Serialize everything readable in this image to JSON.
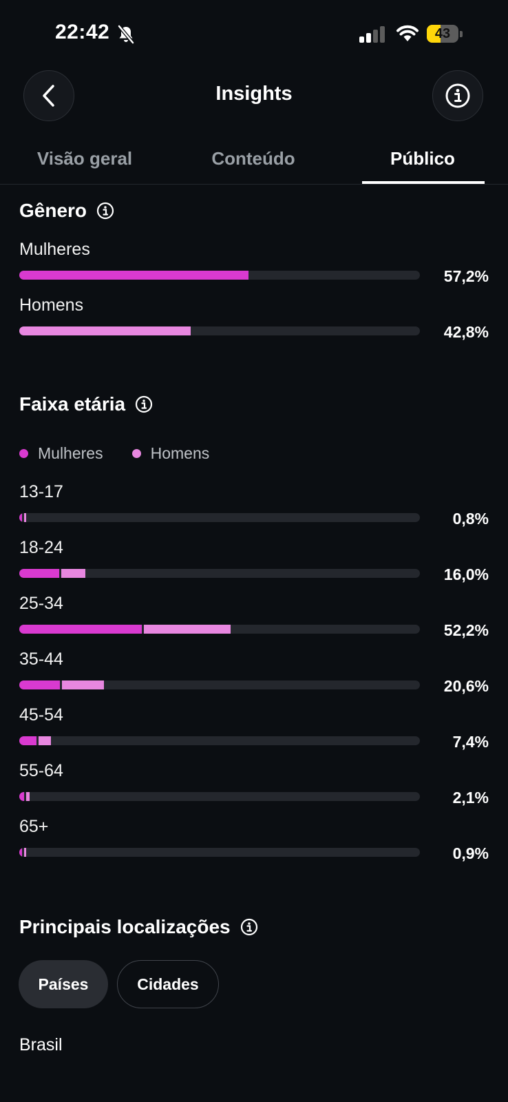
{
  "status_bar": {
    "time": "22:42",
    "battery": "43",
    "battery_level": 0.43
  },
  "header": {
    "title": "Insights"
  },
  "tabs": [
    {
      "label": "Visão geral",
      "active": false
    },
    {
      "label": "Conteúdo",
      "active": false
    },
    {
      "label": "Público",
      "active": true
    }
  ],
  "gender": {
    "title": "Gênero",
    "rows": [
      {
        "label": "Mulheres",
        "pct": "57,2%",
        "value": 57.2
      },
      {
        "label": "Homens",
        "pct": "42,8%",
        "value": 42.8
      }
    ]
  },
  "age": {
    "title": "Faixa etária",
    "legend": [
      "Mulheres",
      "Homens"
    ],
    "rows": [
      {
        "label": "13-17",
        "pct": "0,8%",
        "women": 0.5,
        "men": 0.3
      },
      {
        "label": "18-24",
        "pct": "16,0%",
        "women": 10,
        "men": 6
      },
      {
        "label": "25-34",
        "pct": "52,2%",
        "women": 30.5,
        "men": 21.7
      },
      {
        "label": "35-44",
        "pct": "20,6%",
        "women": 10.2,
        "men": 10.4
      },
      {
        "label": "45-54",
        "pct": "7,4%",
        "women": 4.3,
        "men": 3.1
      },
      {
        "label": "55-64",
        "pct": "2,1%",
        "women": 1.2,
        "men": 0.9
      },
      {
        "label": "65+",
        "pct": "0,9%",
        "women": 0.5,
        "men": 0.4
      }
    ]
  },
  "locations": {
    "title": "Principais localizações",
    "chips": [
      "Países",
      "Cidades"
    ],
    "items": [
      "Brasil"
    ]
  },
  "colors": {
    "women": "#d93ad0",
    "men": "#e887e0",
    "track": "#24272d"
  },
  "icons": [
    "bell-slash-icon",
    "cellular-signal-icon",
    "wifi-icon",
    "battery-icon",
    "back-chevron-icon",
    "info-icon"
  ]
}
